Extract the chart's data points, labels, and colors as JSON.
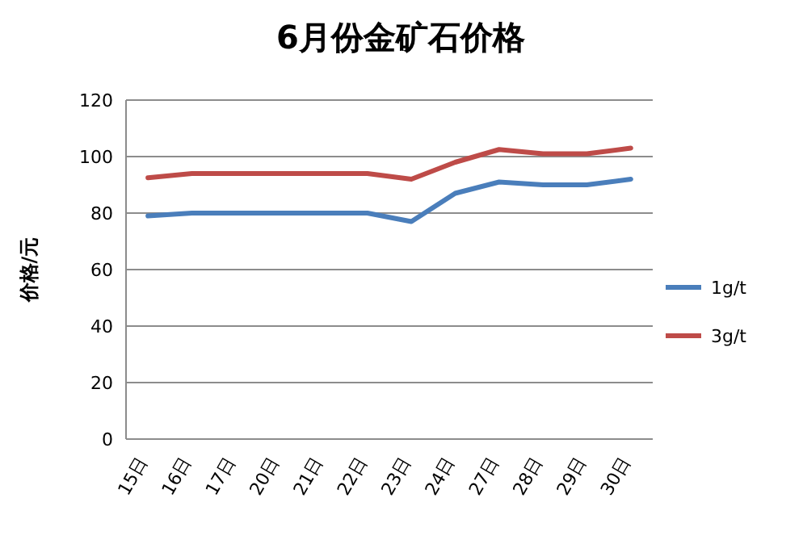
{
  "chart_data": {
    "type": "line",
    "title": "6月份金矿石价格",
    "ylabel": "价格/元",
    "categories": [
      "15日",
      "16日",
      "17日",
      "20日",
      "21日",
      "22日",
      "23日",
      "24日",
      "27日",
      "28日",
      "29日",
      "30日"
    ],
    "series": [
      {
        "name": "1g/t",
        "color": "#4a7ebb",
        "values": [
          79,
          80,
          80,
          80,
          80,
          80,
          77,
          87,
          91,
          90,
          90,
          92
        ]
      },
      {
        "name": "3g/t",
        "color": "#be4b48",
        "values": [
          92.5,
          94,
          94,
          94,
          94,
          94,
          92,
          98,
          102.5,
          101,
          101,
          103
        ]
      }
    ],
    "ylim": [
      0,
      120
    ],
    "yticks": [
      0,
      20,
      40,
      60,
      80,
      100,
      120
    ],
    "grid": "y",
    "legend": "right",
    "marker": "none",
    "line_style": "solid"
  }
}
